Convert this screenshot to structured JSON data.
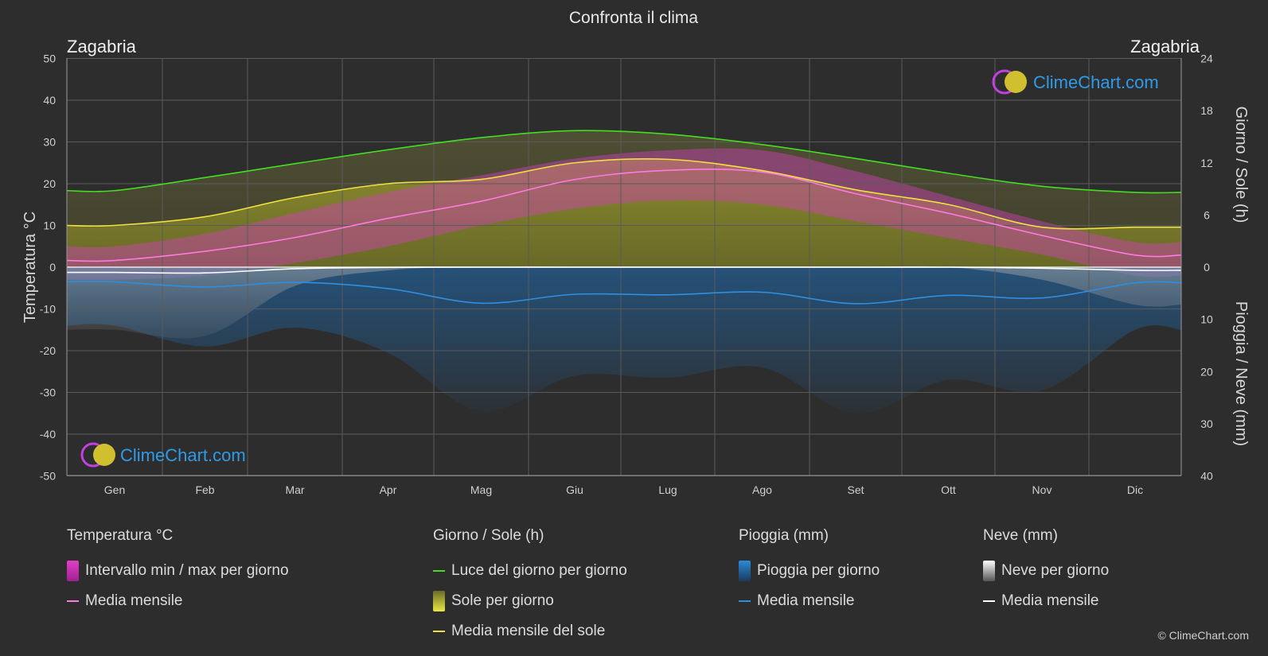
{
  "title": "Confronta il clima",
  "location_left": "Zagabria",
  "location_right": "Zagabria",
  "axis_left_label": "Temperatura °C",
  "axis_right_top_label": "Giorno / Sole (h)",
  "axis_right_bottom_label": "Pioggia / Neve (mm)",
  "logo_text": "ClimeChart.com",
  "copyright": "© ClimeChart.com",
  "colors": {
    "background": "#2d2d2d",
    "temp_range": "#e040c8",
    "temp_mean": "#ff7ae0",
    "daylight": "#44dd22",
    "sunshine": "#c8c832",
    "sunshine_mean": "#f0e040",
    "rain": "#2a8ad8",
    "rain_mean": "#2f8ee0",
    "snow": "#bcbcbc",
    "snow_mean": "#ffffff",
    "logo_blue": "#2f9be8"
  },
  "legend": {
    "temp": {
      "title": "Temperatura °C",
      "range": "Intervallo min / max per giorno",
      "mean": "Media mensile"
    },
    "sun": {
      "title": "Giorno / Sole (h)",
      "daylight": "Luce del giorno per giorno",
      "sunshine": "Sole per giorno",
      "mean": "Media mensile del sole"
    },
    "rain": {
      "title": "Pioggia (mm)",
      "daily": "Pioggia per giorno",
      "mean": "Media mensile"
    },
    "snow": {
      "title": "Neve (mm)",
      "daily": "Neve per giorno",
      "mean": "Media mensile"
    }
  },
  "chart_data": {
    "type": "area",
    "title": "Confronta il clima",
    "categories": [
      "Gen",
      "Feb",
      "Mar",
      "Apr",
      "Mag",
      "Giu",
      "Lug",
      "Ago",
      "Set",
      "Ott",
      "Nov",
      "Dic"
    ],
    "y_left": {
      "label": "Temperatura °C",
      "range": [
        -50,
        50
      ],
      "ticks": [
        50,
        40,
        30,
        20,
        10,
        0,
        -10,
        -20,
        -30,
        -40,
        -50
      ]
    },
    "y_right_top": {
      "label": "Giorno / Sole (h)",
      "range": [
        0,
        24
      ],
      "ticks": [
        24,
        18,
        12,
        6,
        0
      ]
    },
    "y_right_bottom": {
      "label": "Pioggia / Neve (mm)",
      "range": [
        0,
        40
      ],
      "ticks": [
        0,
        10,
        20,
        30,
        40
      ]
    },
    "grid": true,
    "series": [
      {
        "name": "Luce del giorno per giorno",
        "axis": "hours",
        "values": [
          8.8,
          10.3,
          11.9,
          13.5,
          14.9,
          15.7,
          15.3,
          14.1,
          12.5,
          10.8,
          9.3,
          8.6
        ]
      },
      {
        "name": "Media mensile del sole",
        "axis": "hours",
        "values": [
          4.8,
          5.8,
          8.0,
          9.6,
          10.1,
          12.0,
          12.4,
          11.1,
          8.9,
          7.2,
          4.6,
          4.6
        ]
      },
      {
        "name": "Sole per giorno",
        "axis": "hours",
        "values": [
          4.8,
          5.8,
          8.0,
          9.6,
          10.1,
          12.0,
          12.4,
          11.1,
          8.9,
          7.2,
          4.6,
          4.6
        ]
      },
      {
        "name": "Media mensile",
        "measure": "temperatura",
        "axis": "temp",
        "values": [
          1.6,
          3.8,
          7.1,
          11.7,
          15.8,
          21.0,
          23.2,
          22.8,
          17.6,
          12.9,
          7.6,
          2.9
        ]
      },
      {
        "name": "Intervallo min / max per giorno",
        "axis": "temp",
        "min": [
          -3,
          -2,
          1,
          5,
          10,
          14,
          16,
          15,
          11,
          7,
          3,
          -2
        ],
        "max": [
          5,
          8,
          13,
          18,
          22,
          26,
          28,
          28,
          23,
          17,
          11,
          6
        ]
      },
      {
        "name": "Media mensile",
        "measure": "pioggia",
        "axis": "mm",
        "values": [
          2.8,
          3.8,
          2.9,
          4.1,
          6.9,
          5.2,
          5.3,
          4.8,
          7.0,
          5.4,
          5.9,
          3.0
        ]
      },
      {
        "name": "Media mensile",
        "measure": "neve",
        "axis": "mm",
        "values": [
          1.0,
          1.1,
          0.3,
          0.05,
          0,
          0,
          0,
          0,
          0,
          0,
          0.2,
          0.6
        ]
      }
    ]
  }
}
